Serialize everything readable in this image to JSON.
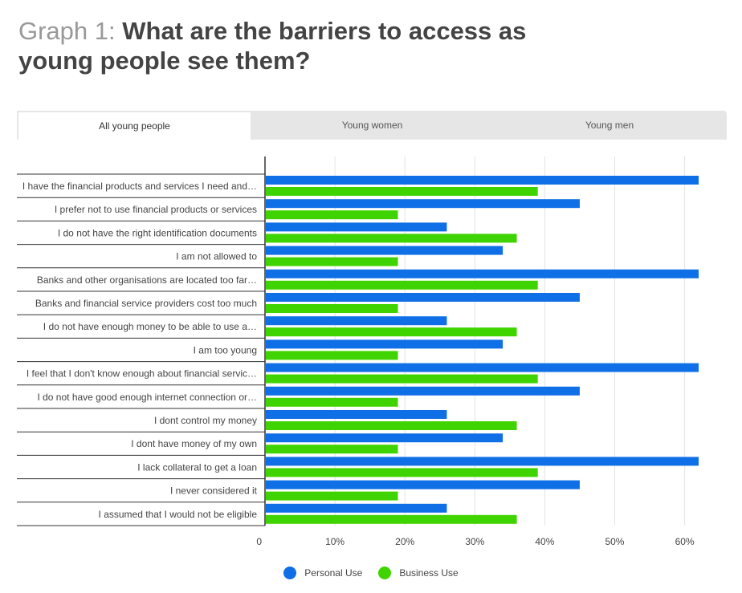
{
  "title": {
    "prefix": "Graph 1: ",
    "main": "What are the barriers to access as young people see them?"
  },
  "tabs": [
    {
      "label": "All young people",
      "active": true
    },
    {
      "label": "Young women",
      "active": false
    },
    {
      "label": "Young men",
      "active": false
    }
  ],
  "colors": {
    "personal": "#0f6fe6",
    "business": "#3fd400"
  },
  "chart_data": {
    "type": "bar",
    "orientation": "horizontal",
    "categories": [
      "I have the financial products and services I need and…",
      "I prefer not to use financial products or services",
      "I do not have the right identification documents",
      "I am not allowed to",
      "Banks and other organisations are located too far…",
      "Banks and financial service providers cost too much",
      "I do not have enough money to be able to use a…",
      "I am too young",
      "I feel that I don't know enough about financial servic…",
      "I do not have good enough internet connection or…",
      "I dont control my money",
      "I dont have money of my own",
      "I lack collateral to get a loan",
      "I never considered it",
      "I assumed that I would not be eligible"
    ],
    "series": [
      {
        "name": "Personal Use",
        "values": [
          62,
          45,
          26,
          34,
          62,
          45,
          26,
          34,
          62,
          45,
          26,
          34,
          62,
          45,
          26
        ]
      },
      {
        "name": "Business Use",
        "values": [
          39,
          19,
          36,
          19,
          39,
          19,
          36,
          19,
          39,
          19,
          36,
          19,
          39,
          19,
          36
        ]
      }
    ],
    "xlim": [
      0,
      62
    ],
    "xticks": [
      0,
      10,
      20,
      30,
      40,
      50,
      60
    ],
    "xtick_labels": [
      "0",
      "10%",
      "20%",
      "30%",
      "40%",
      "50%",
      "60%"
    ],
    "grid": true,
    "legend_position": "bottom"
  }
}
